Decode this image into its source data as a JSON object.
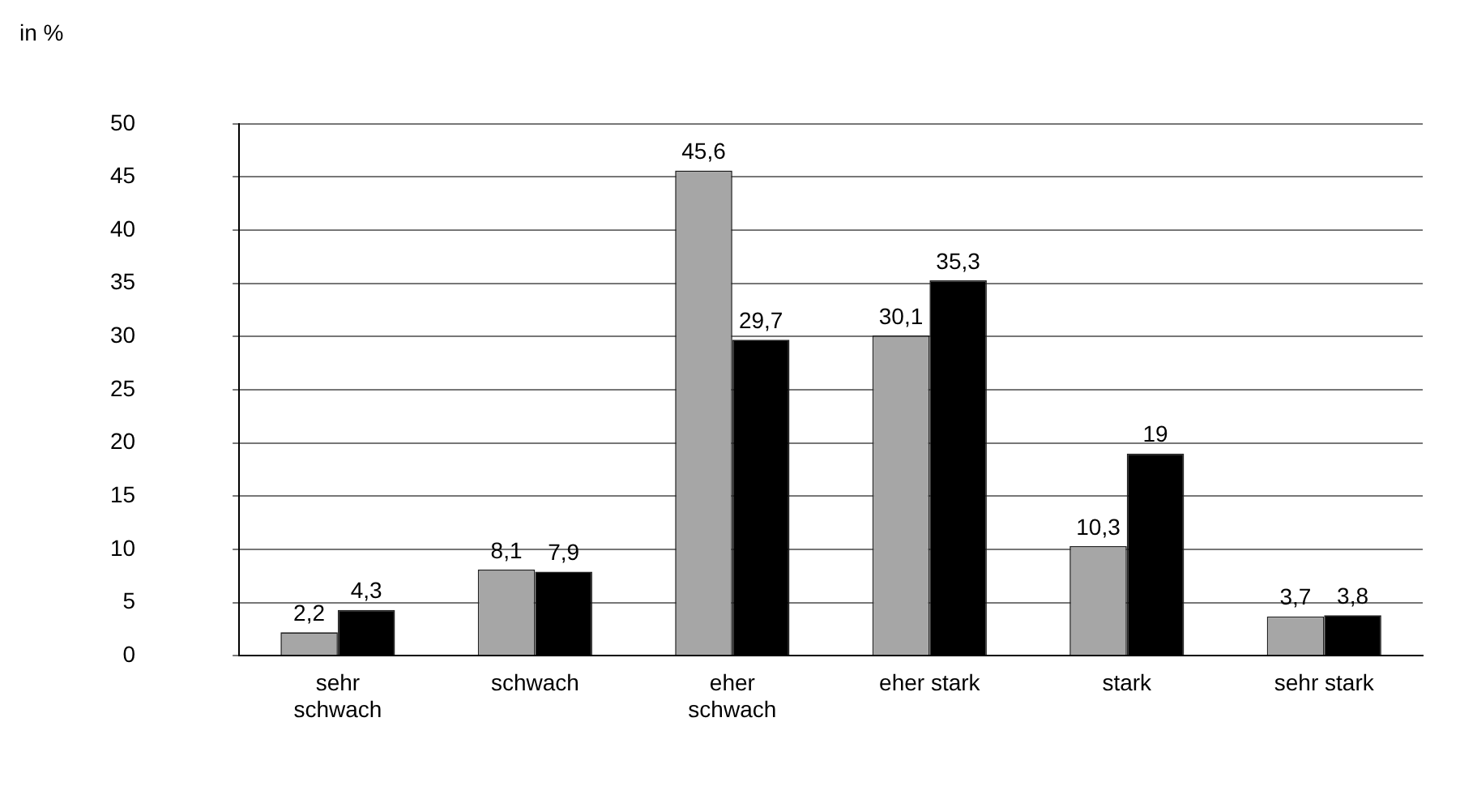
{
  "chart_data": {
    "type": "bar",
    "ylabel": "in %",
    "categories": [
      "sehr schwach",
      "schwach",
      "eher schwach",
      "eher stark",
      "stark",
      "sehr stark"
    ],
    "series": [
      {
        "color": "#a6a6a6",
        "values": [
          2.2,
          8.1,
          45.6,
          30.1,
          10.3,
          3.7
        ],
        "value_labels": [
          "2,2",
          "8,1",
          "45,6",
          "30,1",
          "10,3",
          "3,7"
        ]
      },
      {
        "color": "#000000",
        "values": [
          4.3,
          7.9,
          29.7,
          35.3,
          19,
          3.8
        ],
        "value_labels": [
          "4,3",
          "7,9",
          "29,7",
          "35,3",
          "19",
          "3,8"
        ]
      }
    ],
    "ylim": [
      0,
      50
    ],
    "yticks": [
      0,
      5,
      10,
      15,
      20,
      25,
      30,
      35,
      40,
      45,
      50
    ],
    "grid": "y",
    "legend": false
  }
}
